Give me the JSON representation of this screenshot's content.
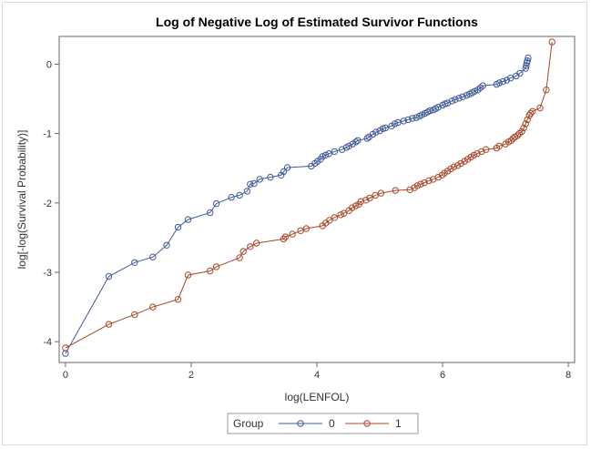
{
  "chart_data": {
    "type": "line",
    "title": "Log of Negative Log of Estimated Survivor Functions",
    "xlabel": "log(LENFOL)",
    "ylabel": "log[-log(Survival Probability)]",
    "xlim": [
      -0.1,
      8.1
    ],
    "ylim": [
      -4.3,
      0.4
    ],
    "xticks": [
      0,
      2,
      4,
      6,
      8
    ],
    "yticks": [
      0,
      -1,
      -2,
      -3,
      -4
    ],
    "grid": false,
    "legend": {
      "title": "Group",
      "position": "bottom"
    },
    "series": [
      {
        "name": "0",
        "color": "#3f5a98",
        "x": [
          0,
          0.69,
          1.1,
          1.39,
          1.61,
          1.79,
          1.95,
          2.3,
          2.4,
          2.64,
          2.77,
          2.89,
          2.94,
          3.0,
          3.09,
          3.26,
          3.43,
          3.47,
          3.53,
          3.91,
          3.97,
          4.01,
          4.06,
          4.09,
          4.14,
          4.19,
          4.28,
          4.4,
          4.47,
          4.51,
          4.57,
          4.62,
          4.65,
          4.8,
          4.83,
          4.89,
          4.94,
          5.0,
          5.05,
          5.09,
          5.19,
          5.24,
          5.29,
          5.38,
          5.45,
          5.52,
          5.58,
          5.63,
          5.67,
          5.72,
          5.76,
          5.8,
          5.85,
          5.89,
          5.93,
          6.0,
          6.04,
          6.08,
          6.15,
          6.2,
          6.26,
          6.32,
          6.38,
          6.43,
          6.47,
          6.51,
          6.56,
          6.6,
          6.64,
          6.86,
          6.9,
          6.96,
          7.02,
          7.08,
          7.17,
          7.23,
          7.32,
          7.33,
          7.34,
          7.35,
          7.36
        ],
        "y": [
          -4.17,
          -3.06,
          -2.86,
          -2.78,
          -2.61,
          -2.35,
          -2.24,
          -2.14,
          -2.01,
          -1.92,
          -1.89,
          -1.83,
          -1.73,
          -1.72,
          -1.66,
          -1.63,
          -1.6,
          -1.55,
          -1.49,
          -1.47,
          -1.43,
          -1.4,
          -1.37,
          -1.33,
          -1.31,
          -1.29,
          -1.26,
          -1.23,
          -1.2,
          -1.18,
          -1.15,
          -1.12,
          -1.1,
          -1.07,
          -1.05,
          -1.01,
          -0.98,
          -0.96,
          -0.93,
          -0.92,
          -0.89,
          -0.86,
          -0.84,
          -0.82,
          -0.8,
          -0.78,
          -0.77,
          -0.75,
          -0.73,
          -0.71,
          -0.69,
          -0.67,
          -0.66,
          -0.64,
          -0.62,
          -0.59,
          -0.57,
          -0.56,
          -0.53,
          -0.51,
          -0.49,
          -0.47,
          -0.45,
          -0.43,
          -0.41,
          -0.39,
          -0.37,
          -0.34,
          -0.31,
          -0.29,
          -0.27,
          -0.25,
          -0.23,
          -0.2,
          -0.17,
          -0.13,
          -0.06,
          -0.02,
          0.02,
          0.05,
          0.09
        ]
      },
      {
        "name": "1",
        "color": "#a8482a",
        "x": [
          0,
          0.69,
          1.1,
          1.39,
          1.79,
          1.95,
          2.3,
          2.4,
          2.77,
          2.83,
          2.94,
          3.04,
          3.47,
          3.5,
          3.61,
          3.74,
          3.83,
          4.09,
          4.14,
          4.2,
          4.28,
          4.38,
          4.43,
          4.51,
          4.56,
          4.62,
          4.67,
          4.7,
          4.78,
          4.84,
          4.93,
          5.02,
          5.25,
          5.48,
          5.55,
          5.6,
          5.65,
          5.71,
          5.78,
          5.85,
          5.93,
          5.99,
          6.03,
          6.08,
          6.13,
          6.18,
          6.24,
          6.29,
          6.35,
          6.4,
          6.45,
          6.5,
          6.55,
          6.62,
          6.69,
          6.86,
          6.9,
          7.0,
          7.05,
          7.09,
          7.12,
          7.15,
          7.19,
          7.22,
          7.26,
          7.29,
          7.32,
          7.35,
          7.38,
          7.4,
          7.43,
          7.55,
          7.65,
          7.74
        ],
        "y": [
          -4.09,
          -3.75,
          -3.61,
          -3.5,
          -3.39,
          -3.04,
          -2.98,
          -2.92,
          -2.79,
          -2.7,
          -2.63,
          -2.58,
          -2.52,
          -2.49,
          -2.45,
          -2.4,
          -2.37,
          -2.33,
          -2.29,
          -2.25,
          -2.21,
          -2.17,
          -2.15,
          -2.11,
          -2.07,
          -2.04,
          -2.02,
          -1.98,
          -1.96,
          -1.93,
          -1.89,
          -1.86,
          -1.82,
          -1.81,
          -1.78,
          -1.75,
          -1.73,
          -1.71,
          -1.68,
          -1.66,
          -1.63,
          -1.6,
          -1.57,
          -1.54,
          -1.51,
          -1.48,
          -1.46,
          -1.43,
          -1.4,
          -1.37,
          -1.34,
          -1.31,
          -1.29,
          -1.26,
          -1.23,
          -1.21,
          -1.18,
          -1.15,
          -1.12,
          -1.1,
          -1.07,
          -1.05,
          -1.03,
          -1.0,
          -0.97,
          -0.92,
          -0.86,
          -0.8,
          -0.74,
          -0.71,
          -0.68,
          -0.63,
          -0.37,
          0.32
        ]
      }
    ]
  }
}
